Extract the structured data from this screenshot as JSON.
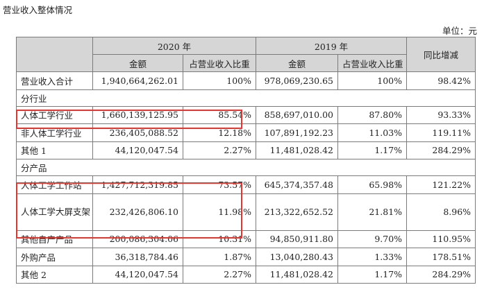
{
  "title": "营业收入整体情况",
  "unit": "单位：元",
  "header": {
    "year_2020": "2020 年",
    "year_2019": "2019 年",
    "yoy": "同比增减",
    "amount_2020": "金额",
    "ratio_2020": "占营业收入比重",
    "amount_2019": "金额",
    "ratio_2019": "占营业收入比重"
  },
  "total": {
    "label": "营业收入合计",
    "amount_2020": "1,940,664,262.01",
    "ratio_2020": "100%",
    "amount_2019": "978,069,230.65",
    "ratio_2019": "100%",
    "yoy": "98.42%"
  },
  "section_industry": "分行业",
  "industry_rows": [
    {
      "label": "人体工学行业",
      "amount_2020": "1,660,139,125.95",
      "ratio_2020": "85.54%",
      "amount_2019": "858,697,010.00",
      "ratio_2019": "87.80%",
      "yoy": "93.33%"
    },
    {
      "label": "非人体工学行业",
      "amount_2020": "236,405,088.52",
      "ratio_2020": "12.18%",
      "amount_2019": "107,891,192.23",
      "ratio_2019": "11.03%",
      "yoy": "119.11%"
    },
    {
      "label": "其他 1",
      "amount_2020": "44,120,047.54",
      "ratio_2020": "2.27%",
      "amount_2019": "11,481,028.42",
      "ratio_2019": "1.17%",
      "yoy": "284.29%"
    }
  ],
  "section_product": "分产品",
  "product_rows": [
    {
      "label": "人体工学工作站",
      "amount_2020": "1,427,712,319.85",
      "ratio_2020": "73.57%",
      "amount_2019": "645,374,357.48",
      "ratio_2019": "65.98%",
      "yoy": "121.22%"
    },
    {
      "label": "人体工学大屏支架",
      "amount_2020": "232,426,806.10",
      "ratio_2020": "11.98%",
      "amount_2019": "213,322,652.52",
      "ratio_2019": "21.81%",
      "yoy": "8.96%"
    },
    {
      "label": "其他自产产品",
      "amount_2020": "200,086,304.06",
      "ratio_2020": "10.31%",
      "amount_2019": "94,850,911.80",
      "ratio_2019": "9.70%",
      "yoy": "110.95%"
    },
    {
      "label": "外购产品",
      "amount_2020": "36,318,784.46",
      "ratio_2020": "1.87%",
      "amount_2019": "13,040,280.43",
      "ratio_2019": "1.33%",
      "yoy": "178.51%"
    },
    {
      "label": "其他 2",
      "amount_2020": "44,120,047.54",
      "ratio_2020": "2.27%",
      "amount_2019": "11,481,028.42",
      "ratio_2019": "1.17%",
      "yoy": "284.29%"
    }
  ],
  "highlight_color": "#e8332f"
}
